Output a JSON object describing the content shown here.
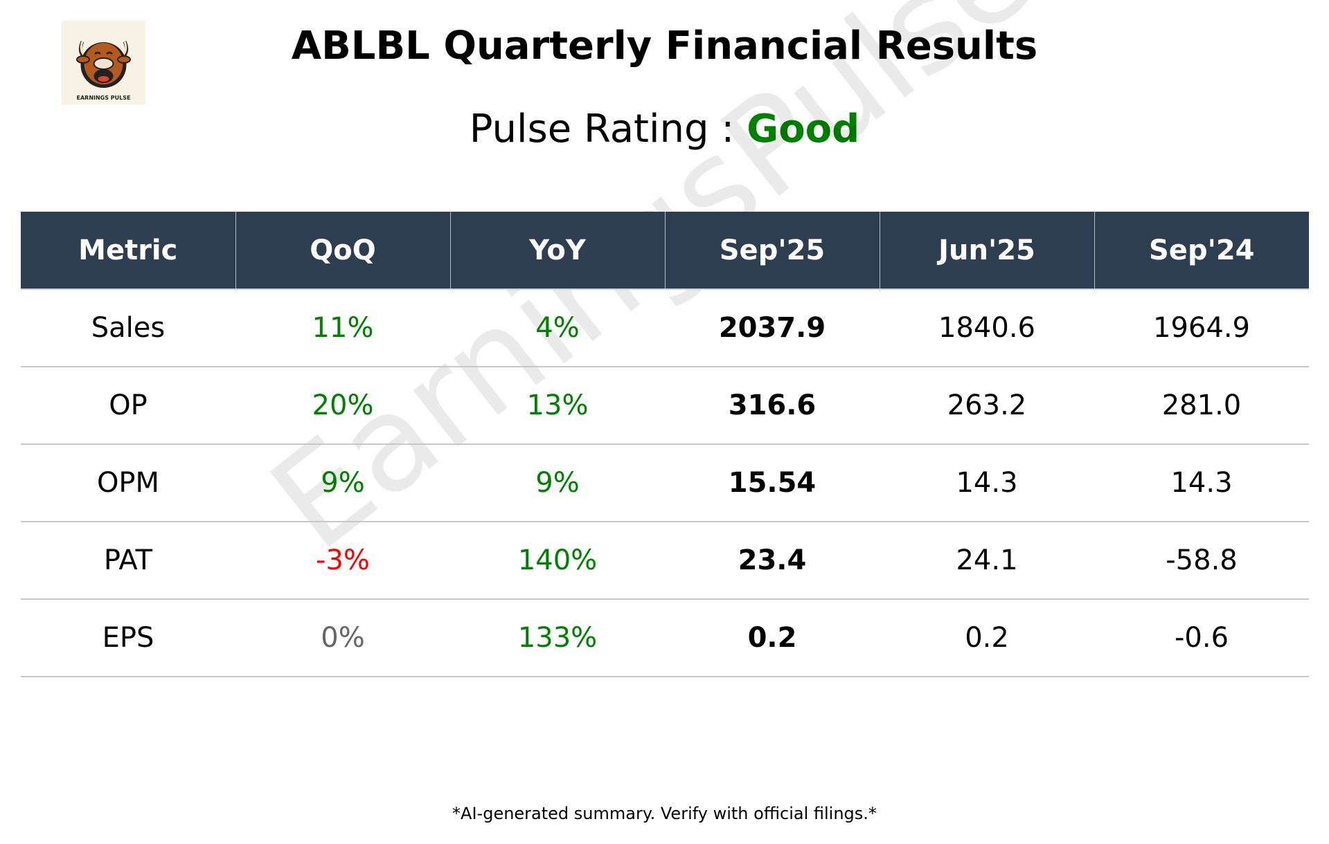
{
  "logo": {
    "icon": "bull-mascot-icon",
    "caption": "EARNINGS PULSE"
  },
  "header": {
    "title": "ABLBL Quarterly Financial Results"
  },
  "rating": {
    "label": "Pulse Rating :",
    "value": "Good",
    "value_color": "#008000"
  },
  "watermark": "EarningsPulse",
  "colors": {
    "header_bg": "#2e3e51",
    "positive": "#008000",
    "negative": "#ff0000",
    "neutral": "#666666"
  },
  "table": {
    "columns": [
      "Metric",
      "QoQ",
      "YoY",
      "Sep'25",
      "Jun'25",
      "Sep'24"
    ],
    "rows": [
      {
        "metric": "Sales",
        "qoq": "11%",
        "qoq_color": "#008000",
        "yoy": "4%",
        "yoy_color": "#008000",
        "sep25": "2037.9",
        "jun25": "1840.6",
        "sep24": "1964.9"
      },
      {
        "metric": "OP",
        "qoq": "20%",
        "qoq_color": "#008000",
        "yoy": "13%",
        "yoy_color": "#008000",
        "sep25": "316.6",
        "jun25": "263.2",
        "sep24": "281.0"
      },
      {
        "metric": "OPM",
        "qoq": "9%",
        "qoq_color": "#008000",
        "yoy": "9%",
        "yoy_color": "#008000",
        "sep25": "15.54",
        "jun25": "14.3",
        "sep24": "14.3"
      },
      {
        "metric": "PAT",
        "qoq": "-3%",
        "qoq_color": "#ff0000",
        "yoy": "140%",
        "yoy_color": "#008000",
        "sep25": "23.4",
        "jun25": "24.1",
        "sep24": "-58.8"
      },
      {
        "metric": "EPS",
        "qoq": "0%",
        "qoq_color": "#666666",
        "yoy": "133%",
        "yoy_color": "#008000",
        "sep25": "0.2",
        "jun25": "0.2",
        "sep24": "-0.6"
      }
    ]
  },
  "footer": "*AI-generated summary. Verify with official filings.*"
}
